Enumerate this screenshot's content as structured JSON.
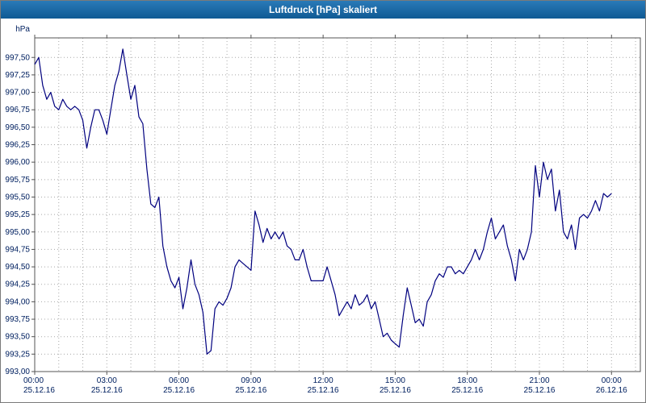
{
  "window": {
    "title": "Luftdruck [hPa] skaliert"
  },
  "colors": {
    "titlebar_bg": "#14639f",
    "titlebar_fg": "#ffffff",
    "line": "#00007f",
    "grid": "#a8a8a8",
    "axis_text": "#002060",
    "plot_border": "#555555",
    "background": "#ffffff"
  },
  "chart_data": {
    "type": "line",
    "title": "Luftdruck [hPa] skaliert",
    "ylabel": "hPa",
    "ylim": [
      993.0,
      997.78
    ],
    "grid": true,
    "legend": "none",
    "y_ticks": {
      "min": 993.0,
      "max": 997.5,
      "step": 0.25,
      "decimal_separator": ","
    },
    "x_axis": {
      "total_hours_displayed": 25.2,
      "minor_grid_step_hours": 1,
      "major_ticks": [
        {
          "hour": 0,
          "time": "00:00",
          "date": "25.12.16"
        },
        {
          "hour": 3,
          "time": "03:00",
          "date": "25.12.16"
        },
        {
          "hour": 6,
          "time": "06:00",
          "date": "25.12.16"
        },
        {
          "hour": 9,
          "time": "09:00",
          "date": "25.12.16"
        },
        {
          "hour": 12,
          "time": "12:00",
          "date": "25.12.16"
        },
        {
          "hour": 15,
          "time": "15:00",
          "date": "25.12.16"
        },
        {
          "hour": 18,
          "time": "18:00",
          "date": "25.12.16"
        },
        {
          "hour": 21,
          "time": "21:00",
          "date": "25.12.16"
        },
        {
          "hour": 24,
          "time": "00:00",
          "date": "26.12.16"
        }
      ]
    },
    "series": [
      {
        "name": "Luftdruck",
        "unit": "hPa",
        "x_start_hour": 0,
        "x_step_minutes": 10,
        "values": [
          997.4,
          997.5,
          997.1,
          996.9,
          997.0,
          996.8,
          996.75,
          996.9,
          996.8,
          996.75,
          996.8,
          996.75,
          996.6,
          996.2,
          996.5,
          996.75,
          996.75,
          996.6,
          996.4,
          996.75,
          997.1,
          997.3,
          997.62,
          997.25,
          996.9,
          997.1,
          996.65,
          996.55,
          995.9,
          995.4,
          995.35,
          995.5,
          994.8,
          994.5,
          994.3,
          994.2,
          994.35,
          993.9,
          994.2,
          994.6,
          994.25,
          994.1,
          993.85,
          993.25,
          993.3,
          993.9,
          994.0,
          993.95,
          994.05,
          994.2,
          994.5,
          994.6,
          994.55,
          994.5,
          994.45,
          995.3,
          995.1,
          994.85,
          995.05,
          994.9,
          995.0,
          994.9,
          995.0,
          994.8,
          994.75,
          994.6,
          994.6,
          994.75,
          994.5,
          994.3,
          994.3,
          994.3,
          994.3,
          994.5,
          994.3,
          994.1,
          993.8,
          993.9,
          994.0,
          993.9,
          994.1,
          993.95,
          994.0,
          994.1,
          993.9,
          994.0,
          993.75,
          993.5,
          993.55,
          993.45,
          993.4,
          993.35,
          993.8,
          994.2,
          993.95,
          993.7,
          993.75,
          993.65,
          994.0,
          994.1,
          994.3,
          994.4,
          994.35,
          994.5,
          994.5,
          994.4,
          994.45,
          994.4,
          994.5,
          994.6,
          994.75,
          994.6,
          994.75,
          995.0,
          995.2,
          994.9,
          995.0,
          995.1,
          994.8,
          994.6,
          994.3,
          994.75,
          994.6,
          994.75,
          995.0,
          995.95,
          995.5,
          996.0,
          995.75,
          995.9,
          995.3,
          995.6,
          995.0,
          994.9,
          995.1,
          994.75,
          995.2,
          995.25,
          995.2,
          995.3,
          995.45,
          995.3,
          995.55,
          995.5,
          995.55
        ]
      }
    ]
  }
}
